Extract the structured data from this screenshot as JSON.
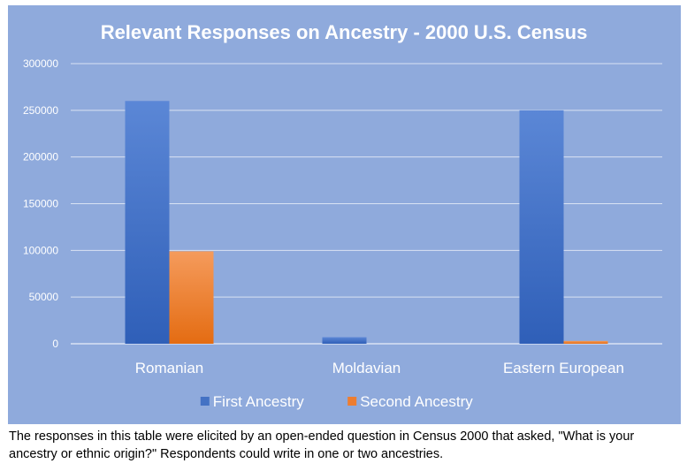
{
  "chart_data": {
    "type": "bar",
    "title": "Relevant Responses on Ancestry - 2000 U.S. Census",
    "categories": [
      "Romanian",
      "Moldavian",
      "Eastern European"
    ],
    "series": [
      {
        "name": "First Ancestry",
        "values": [
          260000,
          7000,
          250000
        ],
        "color": "#4472c4"
      },
      {
        "name": "Second Ancestry",
        "values": [
          99000,
          0,
          3000
        ],
        "color": "#ed7d31"
      }
    ],
    "ylim": [
      0,
      300000
    ],
    "yticks": [
      0,
      50000,
      100000,
      150000,
      200000,
      250000,
      300000
    ],
    "xlabel": "",
    "ylabel": "",
    "grid": true,
    "legend_position": "bottom",
    "background": "#8faadc"
  },
  "caption": "The responses in this table were elicited by an open-ended question in Census 2000 that asked, \"What is your ancestry or ethnic origin?\" Respondents could write in one or two ancestries."
}
